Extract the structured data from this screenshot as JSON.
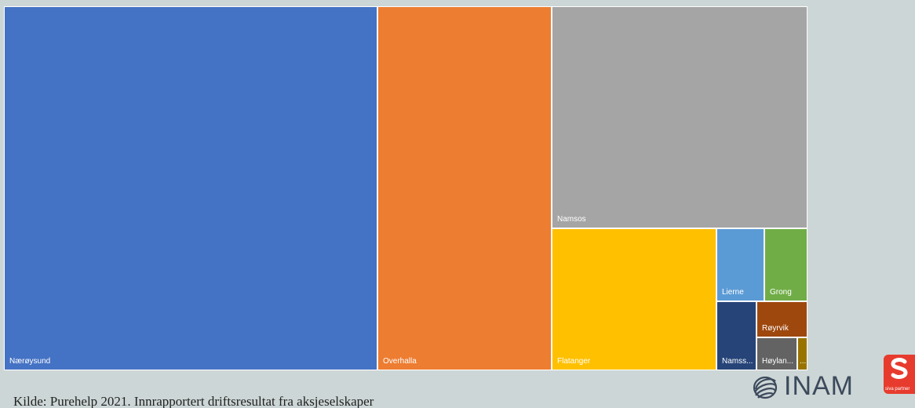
{
  "chart_data": {
    "type": "treemap",
    "title": "",
    "series": [
      {
        "name": "Nærøysund",
        "value": 100,
        "color": "#4472c4"
      },
      {
        "name": "Overhalla",
        "value": 46.3,
        "color": "#ed7d31"
      },
      {
        "name": "Namsos",
        "value": 39.9,
        "color": "#a5a5a5"
      },
      {
        "name": "Flatanger",
        "value": 17.7,
        "color": "#ffc000"
      },
      {
        "name": "Lierne",
        "value": 5.2,
        "color": "#5b9bd5"
      },
      {
        "name": "Grong",
        "value": 5.0,
        "color": "#70ad47"
      },
      {
        "name": "Namss...",
        "value": 4.3,
        "color": "#264478"
      },
      {
        "name": "Røyrvik",
        "value": 2.4,
        "color": "#9e480e"
      },
      {
        "name": "Høylan...",
        "value": 2.1,
        "color": "#636363"
      },
      {
        "name": "...",
        "value": 0.4,
        "color": "#997300"
      }
    ]
  },
  "footer": {
    "source_note": "Kilde: Purehelp 2021. Innrapportert driftsresultat fra aksjeselskaper",
    "logo_text": "INAM",
    "partner_text": "siva partner"
  },
  "colors": {
    "background": "#cdd6d6",
    "tile_border": "#ffffff",
    "logo_text": "#3c4a5c",
    "partner_red": "#e73b2e"
  }
}
